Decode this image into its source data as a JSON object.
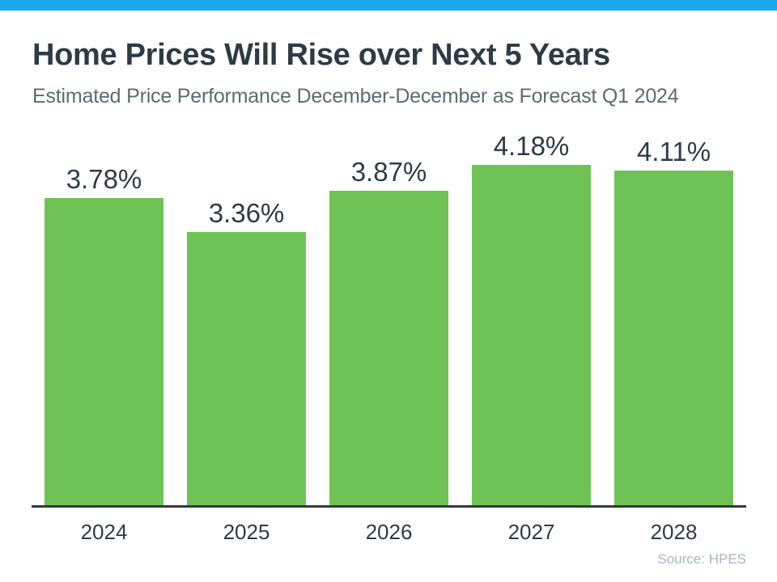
{
  "page": {
    "background": "#ffffff",
    "top_bar_color": "#18A8E9"
  },
  "header": {
    "title": "Home Prices Will Rise over Next 5 Years",
    "subtitle": "Estimated Price Performance December-December as Forecast Q1 2024"
  },
  "chart_data": {
    "type": "bar",
    "categories": [
      "2024",
      "2025",
      "2026",
      "2027",
      "2028"
    ],
    "values": [
      3.78,
      3.36,
      3.87,
      4.18,
      4.11
    ],
    "value_labels": [
      "3.78%",
      "3.36%",
      "3.87%",
      "4.18%",
      "4.11%"
    ],
    "title": "Home Prices Will Rise over Next 5 Years",
    "xlabel": "",
    "ylabel": "",
    "ylim": [
      0,
      4.65
    ],
    "grid": false,
    "legend": false,
    "value_label_position": "above-bars",
    "bar_color": "#6FC355",
    "value_label_color": "#2E3B47",
    "axis_color": "#323A3E"
  },
  "footer": {
    "source": "Source: HPES"
  }
}
